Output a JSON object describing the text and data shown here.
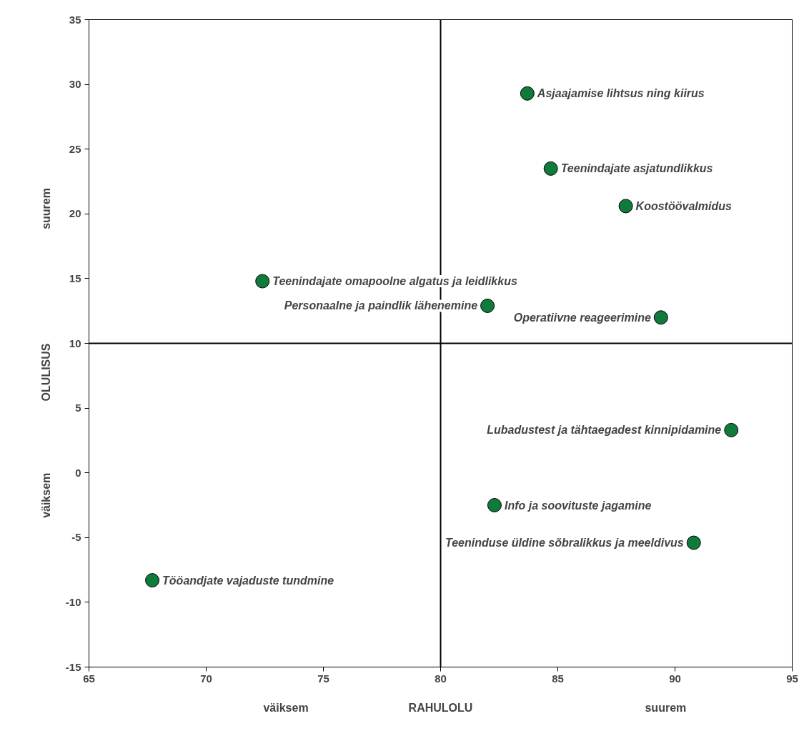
{
  "chart_data": {
    "type": "scatter",
    "xlabel": "RAHULOLU",
    "ylabel": "OLULISUS",
    "annotations": [
      "väiksem",
      "suurem",
      "suurem",
      "väiksem"
    ],
    "xlim": [
      65,
      95
    ],
    "xticks": [
      65,
      70,
      75,
      80,
      85,
      90,
      95
    ],
    "ylim": [
      -15,
      35
    ],
    "yticks": [
      -15,
      -10,
      -5,
      0,
      5,
      10,
      15,
      20,
      25,
      30,
      35
    ],
    "grid": false,
    "marker": "circle",
    "ref_lines": [
      {
        "axis": "x",
        "value": 80,
        "label": null
      },
      {
        "axis": "y",
        "value": 10,
        "label": null
      }
    ],
    "series": [
      {
        "name": "Asjaajamise lihtsus ning kiirus",
        "color": "#0f7a3c",
        "x": [
          83.7
        ],
        "values": [
          29.3
        ]
      },
      {
        "name": "Teenindajate asjatundlikkus",
        "color": "#0f7a3c",
        "x": [
          84.7
        ],
        "values": [
          23.5
        ]
      },
      {
        "name": "Koostöövalmidus",
        "color": "#0f7a3c",
        "x": [
          87.9
        ],
        "values": [
          20.6
        ]
      },
      {
        "name": "Teenindajate omapoolne algatus ja leidlikkus",
        "color": "#0f7a3c",
        "x": [
          72.4
        ],
        "values": [
          14.8
        ]
      },
      {
        "name": "Personaalne ja paindlik lähenemine",
        "color": "#0f7a3c",
        "x": [
          82.0
        ],
        "values": [
          12.9
        ]
      },
      {
        "name": "Operatiivne reageerimine",
        "color": "#0f7a3c",
        "x": [
          89.4
        ],
        "values": [
          12.0
        ]
      },
      {
        "name": "Lubadustest ja tähtaegadest kinnipidamine",
        "color": "#0f7a3c",
        "x": [
          92.4
        ],
        "values": [
          3.3
        ]
      },
      {
        "name": "Info ja soovituste jagamine",
        "color": "#0f7a3c",
        "x": [
          82.3
        ],
        "values": [
          -2.5
        ]
      },
      {
        "name": "Teeninduse üldine sõbralikkus ja meeldivus",
        "color": "#0f7a3c",
        "x": [
          90.8
        ],
        "values": [
          -5.4
        ]
      },
      {
        "name": "Tööandjate vajaduste tundmine",
        "color": "#0f7a3c",
        "x": [
          67.7
        ],
        "values": [
          -8.3
        ]
      }
    ]
  }
}
